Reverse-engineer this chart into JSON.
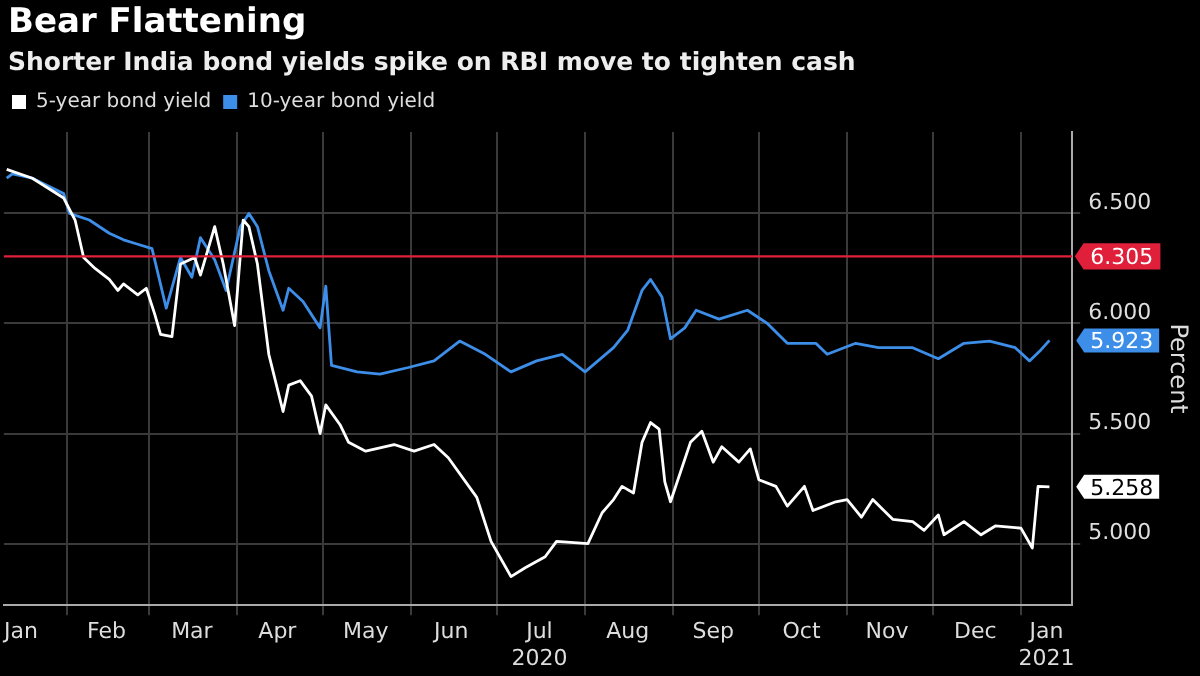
{
  "chart_data": {
    "type": "line",
    "title": "Bear Flattening",
    "subtitle": "Shorter India bond yields spike on RBI move to tighten cash",
    "ylabel": "Percent",
    "legend": "top left",
    "grid": true,
    "marker": "none",
    "line_style": "solid",
    "xlim": [
      "2020-01-10",
      "2021-01-19"
    ],
    "xticks": [
      {
        "value": "2020-01-16",
        "label": "Jan"
      },
      {
        "value": "2020-02-01",
        "label": null
      },
      {
        "value": "2020-02-15",
        "label": "Feb"
      },
      {
        "value": "2020-03-01",
        "label": null
      },
      {
        "value": "2020-03-16",
        "label": "Mar"
      },
      {
        "value": "2020-04-01",
        "label": null
      },
      {
        "value": "2020-04-15",
        "label": "Apr"
      },
      {
        "value": "2020-05-01",
        "label": null
      },
      {
        "value": "2020-05-16",
        "label": "May"
      },
      {
        "value": "2020-06-01",
        "label": null
      },
      {
        "value": "2020-06-15",
        "label": "Jun"
      },
      {
        "value": "2020-07-01",
        "label": null
      },
      {
        "value": "2020-07-16",
        "label": "Jul\n2020"
      },
      {
        "value": "2020-08-01",
        "label": null
      },
      {
        "value": "2020-08-16",
        "label": "Aug"
      },
      {
        "value": "2020-09-01",
        "label": null
      },
      {
        "value": "2020-09-15",
        "label": "Sep"
      },
      {
        "value": "2020-10-01",
        "label": null
      },
      {
        "value": "2020-10-16",
        "label": "Oct"
      },
      {
        "value": "2020-11-01",
        "label": null
      },
      {
        "value": "2020-11-15",
        "label": "Nov"
      },
      {
        "value": "2020-12-01",
        "label": null
      },
      {
        "value": "2020-12-16",
        "label": "Dec"
      },
      {
        "value": "2021-01-01",
        "label": null
      },
      {
        "value": "2021-01-10",
        "label": "Jan\n2021"
      }
    ],
    "ylim": [
      4.72,
      6.87
    ],
    "yticks": [
      {
        "value": 5,
        "label": "5.000"
      },
      {
        "value": 5.5,
        "label": "5.500"
      },
      {
        "value": 6,
        "label": "6.000"
      },
      {
        "value": 6.5,
        "label": "6.500"
      }
    ],
    "ref_lines": [
      {
        "axis": "y",
        "value": 6.305,
        "label": "6.305",
        "color": "#e0203a"
      }
    ],
    "series": [
      {
        "name": "5-year bond yield",
        "color": "#ffffff",
        "x": [
          "2020-01-11",
          "2020-01-20",
          "2020-01-31",
          "2020-02-04",
          "2020-02-07",
          "2020-02-11",
          "2020-02-16",
          "2020-02-19",
          "2020-02-21",
          "2020-02-26",
          "2020-02-29",
          "2020-03-03",
          "2020-03-05",
          "2020-03-09",
          "2020-03-12",
          "2020-03-17",
          "2020-03-19",
          "2020-03-24",
          "2020-03-27",
          "2020-03-31",
          "2020-04-03",
          "2020-04-05",
          "2020-04-08",
          "2020-04-12",
          "2020-04-17",
          "2020-04-19",
          "2020-04-23",
          "2020-04-27",
          "2020-04-30",
          "2020-05-02",
          "2020-05-07",
          "2020-05-10",
          "2020-05-16",
          "2020-05-26",
          "2020-06-02",
          "2020-06-09",
          "2020-06-14",
          "2020-06-24",
          "2020-06-29",
          "2020-07-06",
          "2020-07-11",
          "2020-07-18",
          "2020-07-22",
          "2020-08-02",
          "2020-08-07",
          "2020-08-11",
          "2020-08-14",
          "2020-08-18",
          "2020-08-21",
          "2020-08-24",
          "2020-08-27",
          "2020-08-29",
          "2020-08-31",
          "2020-09-07",
          "2020-09-11",
          "2020-09-15",
          "2020-09-18",
          "2020-09-24",
          "2020-09-28",
          "2020-10-01",
          "2020-10-07",
          "2020-10-11",
          "2020-10-17",
          "2020-10-20",
          "2020-10-28",
          "2020-11-01",
          "2020-11-06",
          "2020-11-10",
          "2020-11-17",
          "2020-11-24",
          "2020-11-28",
          "2020-12-03",
          "2020-12-05",
          "2020-12-12",
          "2020-12-18",
          "2020-12-23",
          "2021-01-01",
          "2021-01-05",
          "2021-01-07",
          "2021-01-11"
        ],
        "values": [
          6.7,
          6.66,
          6.57,
          6.47,
          6.3,
          6.25,
          6.2,
          6.15,
          6.18,
          6.13,
          6.16,
          6.04,
          5.95,
          5.94,
          6.27,
          6.3,
          6.22,
          6.44,
          6.27,
          5.99,
          6.47,
          6.44,
          6.27,
          5.86,
          5.6,
          5.72,
          5.74,
          5.67,
          5.5,
          5.63,
          5.54,
          5.46,
          5.42,
          5.45,
          5.42,
          5.45,
          5.39,
          5.21,
          5.01,
          4.85,
          4.89,
          4.94,
          5.01,
          5.0,
          5.14,
          5.2,
          5.26,
          5.23,
          5.46,
          5.55,
          5.52,
          5.28,
          5.19,
          5.46,
          5.51,
          5.37,
          5.44,
          5.37,
          5.43,
          5.29,
          5.26,
          5.17,
          5.26,
          5.15,
          5.19,
          5.2,
          5.12,
          5.2,
          5.11,
          5.1,
          5.06,
          5.13,
          5.04,
          5.1,
          5.04,
          5.08,
          5.07,
          4.98,
          5.26,
          5.258
        ],
        "value_labels": [
          null,
          null,
          null,
          null,
          null,
          null,
          null,
          null,
          null,
          null,
          null,
          null,
          null,
          null,
          null,
          null,
          null,
          null,
          null,
          null,
          null,
          null,
          null,
          null,
          null,
          null,
          null,
          null,
          null,
          null,
          null,
          null,
          null,
          null,
          null,
          null,
          null,
          null,
          null,
          null,
          null,
          null,
          null,
          null,
          null,
          null,
          null,
          null,
          null,
          null,
          null,
          null,
          null,
          null,
          null,
          null,
          null,
          null,
          null,
          null,
          null,
          null,
          null,
          null,
          null,
          null,
          null,
          null,
          null,
          null,
          null,
          null,
          null,
          null,
          null,
          null,
          null,
          null,
          null,
          "5.258"
        ]
      },
      {
        "name": "10-year bond yield",
        "color": "#3d8ee8",
        "x": [
          "2020-01-11",
          "2020-01-13",
          "2020-01-20",
          "2020-01-31",
          "2020-02-02",
          "2020-02-09",
          "2020-02-16",
          "2020-02-21",
          "2020-02-26",
          "2020-03-02",
          "2020-03-07",
          "2020-03-12",
          "2020-03-16",
          "2020-03-19",
          "2020-03-24",
          "2020-03-28",
          "2020-04-02",
          "2020-04-05",
          "2020-04-08",
          "2020-04-12",
          "2020-04-17",
          "2020-04-19",
          "2020-04-24",
          "2020-04-30",
          "2020-05-02",
          "2020-05-04",
          "2020-05-13",
          "2020-05-21",
          "2020-05-31",
          "2020-06-09",
          "2020-06-18",
          "2020-06-27",
          "2020-07-06",
          "2020-07-15",
          "2020-07-24",
          "2020-08-01",
          "2020-08-11",
          "2020-08-16",
          "2020-08-21",
          "2020-08-24",
          "2020-08-28",
          "2020-08-31",
          "2020-09-05",
          "2020-09-09",
          "2020-09-17",
          "2020-09-27",
          "2020-10-04",
          "2020-10-11",
          "2020-10-21",
          "2020-10-25",
          "2020-11-04",
          "2020-11-12",
          "2020-11-24",
          "2020-12-03",
          "2020-12-12",
          "2020-12-21",
          "2020-12-30",
          "2021-01-04",
          "2021-01-08",
          "2021-01-11"
        ],
        "values": [
          6.66,
          6.68,
          6.66,
          6.59,
          6.5,
          6.47,
          6.41,
          6.38,
          6.36,
          6.34,
          6.07,
          6.3,
          6.21,
          6.39,
          6.29,
          6.15,
          6.44,
          6.5,
          6.44,
          6.24,
          6.06,
          6.16,
          6.1,
          5.98,
          6.17,
          5.81,
          5.78,
          5.77,
          5.8,
          5.83,
          5.92,
          5.86,
          5.78,
          5.83,
          5.86,
          5.78,
          5.89,
          5.97,
          6.15,
          6.2,
          6.12,
          5.93,
          5.98,
          6.06,
          6.02,
          6.06,
          6.0,
          5.91,
          5.91,
          5.86,
          5.91,
          5.89,
          5.89,
          5.84,
          5.91,
          5.92,
          5.89,
          5.83,
          5.88,
          5.923
        ],
        "value_labels": [
          null,
          null,
          null,
          null,
          null,
          null,
          null,
          null,
          null,
          null,
          null,
          null,
          null,
          null,
          null,
          null,
          null,
          null,
          null,
          null,
          null,
          null,
          null,
          null,
          null,
          null,
          null,
          null,
          null,
          null,
          null,
          null,
          null,
          null,
          null,
          null,
          null,
          null,
          null,
          null,
          null,
          null,
          null,
          null,
          null,
          null,
          null,
          null,
          null,
          null,
          null,
          null,
          null,
          null,
          null,
          null,
          null,
          null,
          null,
          "5.923"
        ]
      }
    ]
  }
}
